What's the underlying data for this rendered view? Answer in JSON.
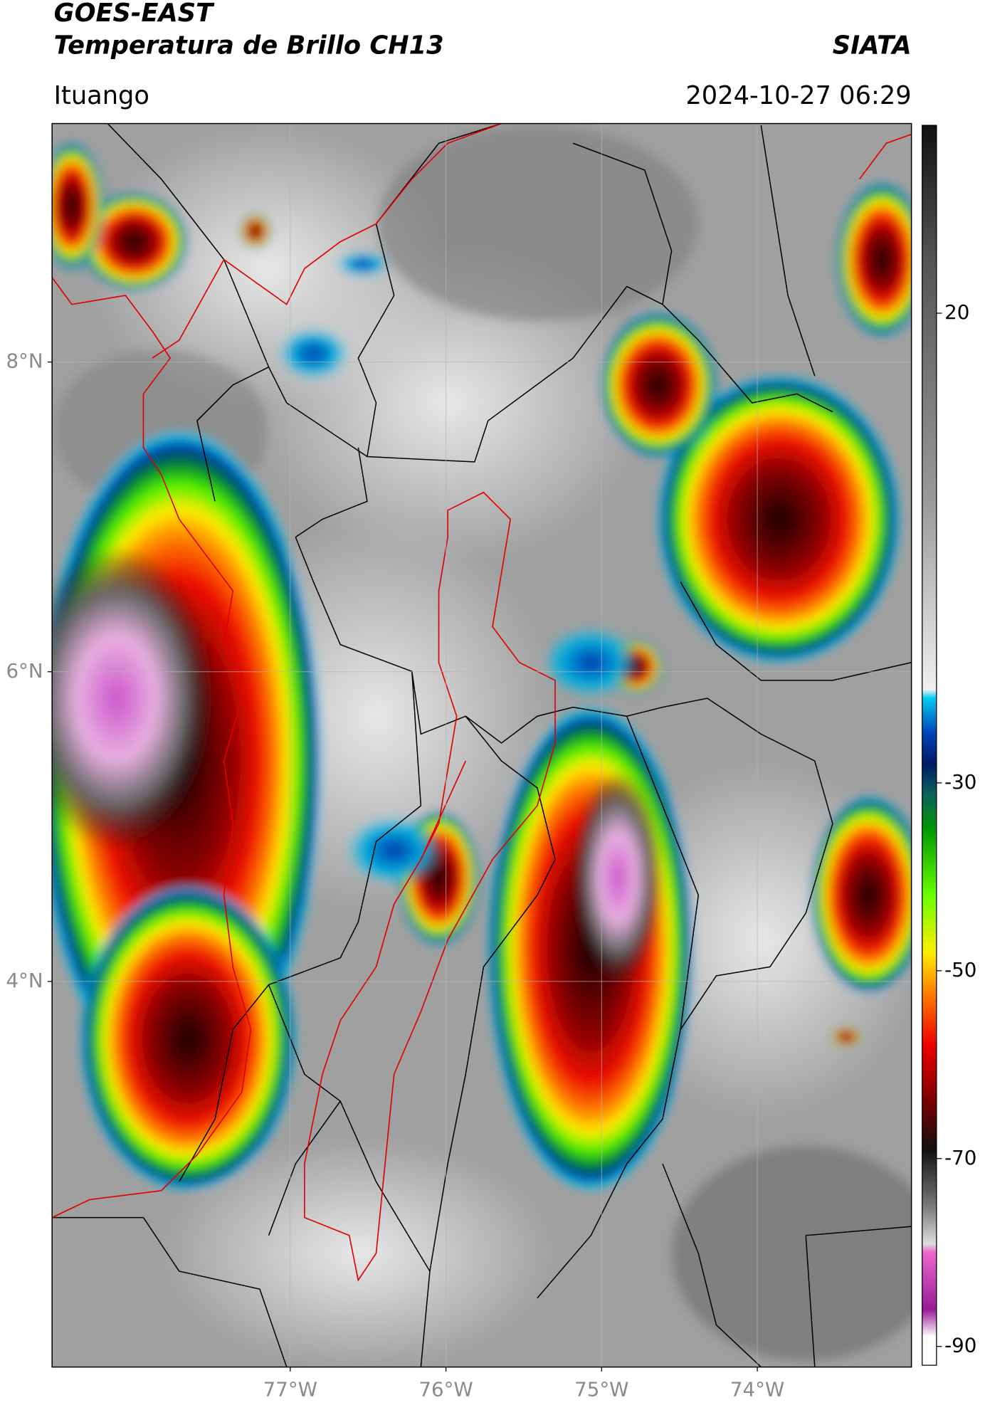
{
  "header": {
    "title": "GOES-EAST",
    "subtitle": "Temperatura de Brillo CH13",
    "agency": "SIATA",
    "location": "Ituango",
    "datetime": "2024-10-27 06:29"
  },
  "map": {
    "xlim": [
      -78.53,
      -73.01
    ],
    "ylim": [
      1.51,
      9.54
    ],
    "xticks": [
      {
        "value": -77,
        "label": "77°W"
      },
      {
        "value": -76,
        "label": "76°W"
      },
      {
        "value": -75,
        "label": "75°W"
      },
      {
        "value": -74,
        "label": "74°W"
      }
    ],
    "yticks": [
      {
        "value": 8,
        "label": "8°N"
      },
      {
        "value": 6,
        "label": "6°N"
      },
      {
        "value": 4,
        "label": "4°N"
      }
    ]
  },
  "colorbar": {
    "ylim": [
      -92,
      40
    ],
    "yticks": [
      20,
      -30,
      -50,
      -70,
      -90
    ]
  }
}
